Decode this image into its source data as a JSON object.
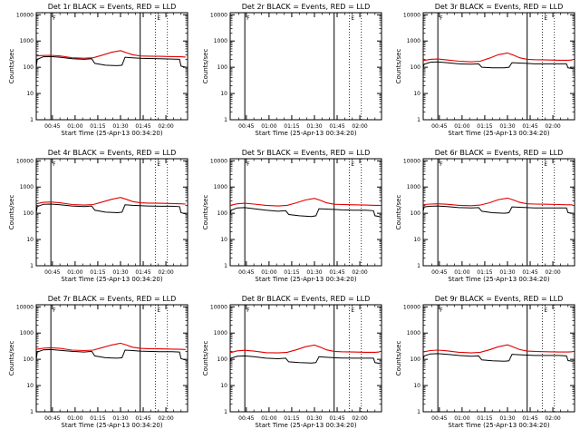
{
  "colors": {
    "events": "#000000",
    "lld": "#e00000",
    "background": "#ffffff",
    "axis": "#000000"
  },
  "common": {
    "xlabel": "Start Time (25-Apr-13 00:34:20)",
    "ylabel": "Counts/sec",
    "x_ticks": [
      "00:45",
      "01:00",
      "01:15",
      "01:30",
      "01:45",
      "02:00"
    ],
    "y_ticks": [
      "1",
      "10",
      "100",
      "1000",
      "10000"
    ],
    "x_tick_minutes": [
      45,
      60,
      75,
      90,
      105,
      120
    ],
    "xlim_minutes": [
      34.33,
      134.33
    ],
    "ylim": [
      1,
      12000
    ],
    "yscale": "log",
    "flag_letter_left": "F",
    "flag_letter_right": "E"
  },
  "chart_data": [
    {
      "type": "line",
      "title": "Det 1r BLACK = Events, RED = LLD",
      "xlabel": "Start Time (25-Apr-13 00:34:20)",
      "ylabel": "Counts/sec",
      "solid_markers_min": [
        44,
        103
      ],
      "dotted_markers_min": [
        113,
        121
      ],
      "series": [
        {
          "name": "LLD",
          "color": "#e00000",
          "x": [
            34,
            39,
            44,
            50,
            58,
            66,
            72,
            78,
            84,
            90,
            94,
            98,
            103,
            108,
            116,
            124,
            130,
            133
          ],
          "y": [
            270,
            280,
            285,
            270,
            230,
            220,
            230,
            290,
            370,
            430,
            360,
            300,
            270,
            265,
            260,
            255,
            250,
            245
          ]
        },
        {
          "name": "Events",
          "color": "#000000",
          "x": [
            34,
            35,
            39,
            44,
            50,
            58,
            66,
            71,
            73,
            80,
            88,
            91,
            93,
            98,
            103,
            108,
            116,
            124,
            129,
            130,
            133
          ],
          "y": [
            100,
            200,
            250,
            255,
            240,
            210,
            200,
            210,
            140,
            120,
            115,
            120,
            240,
            230,
            220,
            215,
            210,
            205,
            200,
            110,
            100
          ]
        }
      ]
    },
    {
      "type": "line",
      "title": "Det 2r BLACK = Events, RED = LLD",
      "xlabel": "Start Time (25-Apr-13 00:34:20)",
      "ylabel": "Counts/sec",
      "solid_markers_min": [
        44,
        103
      ],
      "dotted_markers_min": [
        113,
        121
      ],
      "series": [
        {
          "name": "LLD",
          "color": "#e00000",
          "x": [],
          "y": []
        },
        {
          "name": "Events",
          "color": "#000000",
          "x": [],
          "y": []
        }
      ]
    },
    {
      "type": "line",
      "title": "Det 3r BLACK = Events, RED = LLD",
      "xlabel": "Start Time (25-Apr-13 00:34:20)",
      "ylabel": "Counts/sec",
      "solid_markers_min": [
        44,
        103
      ],
      "dotted_markers_min": [
        113,
        121
      ],
      "series": [
        {
          "name": "LLD",
          "color": "#e00000",
          "x": [
            34,
            39,
            44,
            50,
            58,
            66,
            72,
            78,
            84,
            90,
            94,
            98,
            103,
            108,
            116,
            124,
            130,
            133
          ],
          "y": [
            180,
            200,
            205,
            190,
            170,
            160,
            170,
            220,
            300,
            350,
            290,
            230,
            200,
            195,
            190,
            185,
            185,
            190
          ]
        },
        {
          "name": "Events",
          "color": "#000000",
          "x": [
            34,
            35,
            39,
            44,
            50,
            58,
            66,
            71,
            73,
            80,
            88,
            91,
            93,
            98,
            103,
            108,
            116,
            124,
            129,
            130,
            133
          ],
          "y": [
            100,
            130,
            155,
            160,
            150,
            135,
            130,
            135,
            100,
            95,
            95,
            100,
            150,
            145,
            140,
            135,
            135,
            135,
            135,
            95,
            90
          ]
        }
      ]
    },
    {
      "type": "line",
      "title": "Det 4r BLACK = Events, RED = LLD",
      "xlabel": "Start Time (25-Apr-13 00:34:20)",
      "ylabel": "Counts/sec",
      "solid_markers_min": [
        44,
        103
      ],
      "dotted_markers_min": [
        113,
        121
      ],
      "series": [
        {
          "name": "LLD",
          "color": "#e00000",
          "x": [
            34,
            39,
            44,
            50,
            58,
            66,
            72,
            78,
            84,
            90,
            94,
            98,
            103,
            108,
            116,
            124,
            130,
            133
          ],
          "y": [
            230,
            260,
            270,
            250,
            215,
            205,
            215,
            270,
            340,
            400,
            340,
            280,
            250,
            245,
            240,
            235,
            230,
            225
          ]
        },
        {
          "name": "Events",
          "color": "#000000",
          "x": [
            34,
            35,
            39,
            44,
            50,
            58,
            66,
            71,
            73,
            80,
            88,
            91,
            93,
            98,
            103,
            108,
            116,
            124,
            129,
            130,
            133
          ],
          "y": [
            100,
            180,
            220,
            225,
            210,
            190,
            180,
            190,
            130,
            110,
            105,
            110,
            210,
            200,
            195,
            190,
            185,
            185,
            180,
            105,
            95
          ]
        }
      ]
    },
    {
      "type": "line",
      "title": "Det 5r BLACK = Events, RED = LLD",
      "xlabel": "Start Time (25-Apr-13 00:34:20)",
      "ylabel": "Counts/sec",
      "solid_markers_min": [
        44,
        103
      ],
      "dotted_markers_min": [
        113,
        121
      ],
      "series": [
        {
          "name": "LLD",
          "color": "#e00000",
          "x": [
            34,
            39,
            44,
            50,
            58,
            66,
            72,
            78,
            84,
            90,
            94,
            98,
            103,
            108,
            116,
            124,
            130,
            133
          ],
          "y": [
            200,
            230,
            240,
            225,
            200,
            190,
            200,
            250,
            320,
            370,
            310,
            250,
            220,
            215,
            210,
            205,
            200,
            200
          ]
        },
        {
          "name": "Events",
          "color": "#000000",
          "x": [
            34,
            35,
            39,
            44,
            50,
            58,
            66,
            71,
            73,
            80,
            88,
            91,
            93,
            98,
            103,
            108,
            116,
            124,
            129,
            130,
            133
          ],
          "y": [
            90,
            130,
            160,
            165,
            150,
            130,
            120,
            125,
            90,
            80,
            75,
            80,
            150,
            145,
            140,
            135,
            130,
            130,
            125,
            80,
            75
          ]
        }
      ]
    },
    {
      "type": "line",
      "title": "Det 6r BLACK = Events, RED = LLD",
      "xlabel": "Start Time (25-Apr-13 00:34:20)",
      "ylabel": "Counts/sec",
      "solid_markers_min": [
        44,
        103
      ],
      "dotted_markers_min": [
        113,
        121
      ],
      "series": [
        {
          "name": "LLD",
          "color": "#e00000",
          "x": [
            34,
            39,
            44,
            50,
            58,
            66,
            72,
            78,
            84,
            90,
            94,
            98,
            103,
            108,
            116,
            124,
            130,
            133
          ],
          "y": [
            215,
            225,
            230,
            220,
            200,
            195,
            205,
            250,
            330,
            380,
            320,
            260,
            230,
            225,
            220,
            215,
            210,
            210
          ]
        },
        {
          "name": "Events",
          "color": "#000000",
          "x": [
            34,
            35,
            39,
            44,
            50,
            58,
            66,
            71,
            73,
            80,
            88,
            91,
            93,
            98,
            103,
            108,
            116,
            124,
            129,
            130,
            133
          ],
          "y": [
            120,
            175,
            185,
            190,
            180,
            165,
            160,
            165,
            120,
            105,
            100,
            105,
            175,
            170,
            165,
            160,
            160,
            160,
            160,
            105,
            100
          ]
        }
      ]
    },
    {
      "type": "line",
      "title": "Det 7r BLACK = Events, RED = LLD",
      "xlabel": "Start Time (25-Apr-13 00:34:20)",
      "ylabel": "Counts/sec",
      "solid_markers_min": [
        44,
        103
      ],
      "dotted_markers_min": [
        113,
        121
      ],
      "series": [
        {
          "name": "LLD",
          "color": "#e00000",
          "x": [
            34,
            39,
            44,
            50,
            58,
            66,
            72,
            78,
            84,
            90,
            94,
            98,
            103,
            108,
            116,
            124,
            130,
            133
          ],
          "y": [
            240,
            265,
            275,
            260,
            225,
            215,
            225,
            280,
            350,
            410,
            350,
            290,
            260,
            255,
            250,
            245,
            240,
            235
          ]
        },
        {
          "name": "Events",
          "color": "#000000",
          "x": [
            34,
            35,
            39,
            44,
            50,
            58,
            66,
            71,
            73,
            80,
            88,
            91,
            93,
            98,
            103,
            108,
            116,
            124,
            129,
            130,
            133
          ],
          "y": [
            95,
            190,
            230,
            235,
            220,
            200,
            190,
            200,
            135,
            115,
            110,
            115,
            225,
            215,
            205,
            200,
            195,
            195,
            190,
            105,
            95
          ]
        }
      ]
    },
    {
      "type": "line",
      "title": "Det 8r BLACK = Events, RED = LLD",
      "xlabel": "Start Time (25-Apr-13 00:34:20)",
      "ylabel": "Counts/sec",
      "solid_markers_min": [
        44,
        103
      ],
      "dotted_markers_min": [
        113,
        121
      ],
      "series": [
        {
          "name": "LLD",
          "color": "#e00000",
          "x": [
            34,
            39,
            44,
            50,
            58,
            66,
            72,
            78,
            84,
            90,
            94,
            98,
            103,
            108,
            116,
            124,
            130,
            133
          ],
          "y": [
            180,
            210,
            220,
            205,
            180,
            175,
            185,
            230,
            300,
            350,
            290,
            230,
            200,
            195,
            190,
            185,
            185,
            190
          ]
        },
        {
          "name": "Events",
          "color": "#000000",
          "x": [
            34,
            35,
            39,
            44,
            50,
            58,
            66,
            71,
            73,
            80,
            88,
            91,
            93,
            98,
            103,
            108,
            116,
            124,
            129,
            130,
            133
          ],
          "y": [
            80,
            110,
            130,
            135,
            125,
            110,
            105,
            110,
            80,
            75,
            72,
            75,
            125,
            120,
            115,
            112,
            110,
            110,
            110,
            75,
            70
          ]
        }
      ]
    },
    {
      "type": "line",
      "title": "Det 9r BLACK = Events, RED = LLD",
      "xlabel": "Start Time (25-Apr-13 00:34:20)",
      "ylabel": "Counts/sec",
      "solid_markers_min": [
        44,
        103
      ],
      "dotted_markers_min": [
        113,
        121
      ],
      "series": [
        {
          "name": "LLD",
          "color": "#e00000",
          "x": [
            34,
            39,
            44,
            50,
            58,
            66,
            72,
            78,
            84,
            90,
            94,
            98,
            103,
            108,
            116,
            124,
            130,
            133
          ],
          "y": [
            190,
            215,
            225,
            210,
            185,
            175,
            185,
            230,
            300,
            355,
            295,
            235,
            205,
            200,
            195,
            190,
            190,
            195
          ]
        },
        {
          "name": "Events",
          "color": "#000000",
          "x": [
            34,
            35,
            39,
            44,
            50,
            58,
            66,
            71,
            73,
            80,
            88,
            91,
            93,
            98,
            103,
            108,
            116,
            124,
            129,
            130,
            133
          ],
          "y": [
            95,
            135,
            160,
            165,
            155,
            140,
            130,
            135,
            95,
            88,
            85,
            88,
            155,
            150,
            145,
            140,
            140,
            140,
            135,
            90,
            85
          ]
        }
      ]
    }
  ]
}
